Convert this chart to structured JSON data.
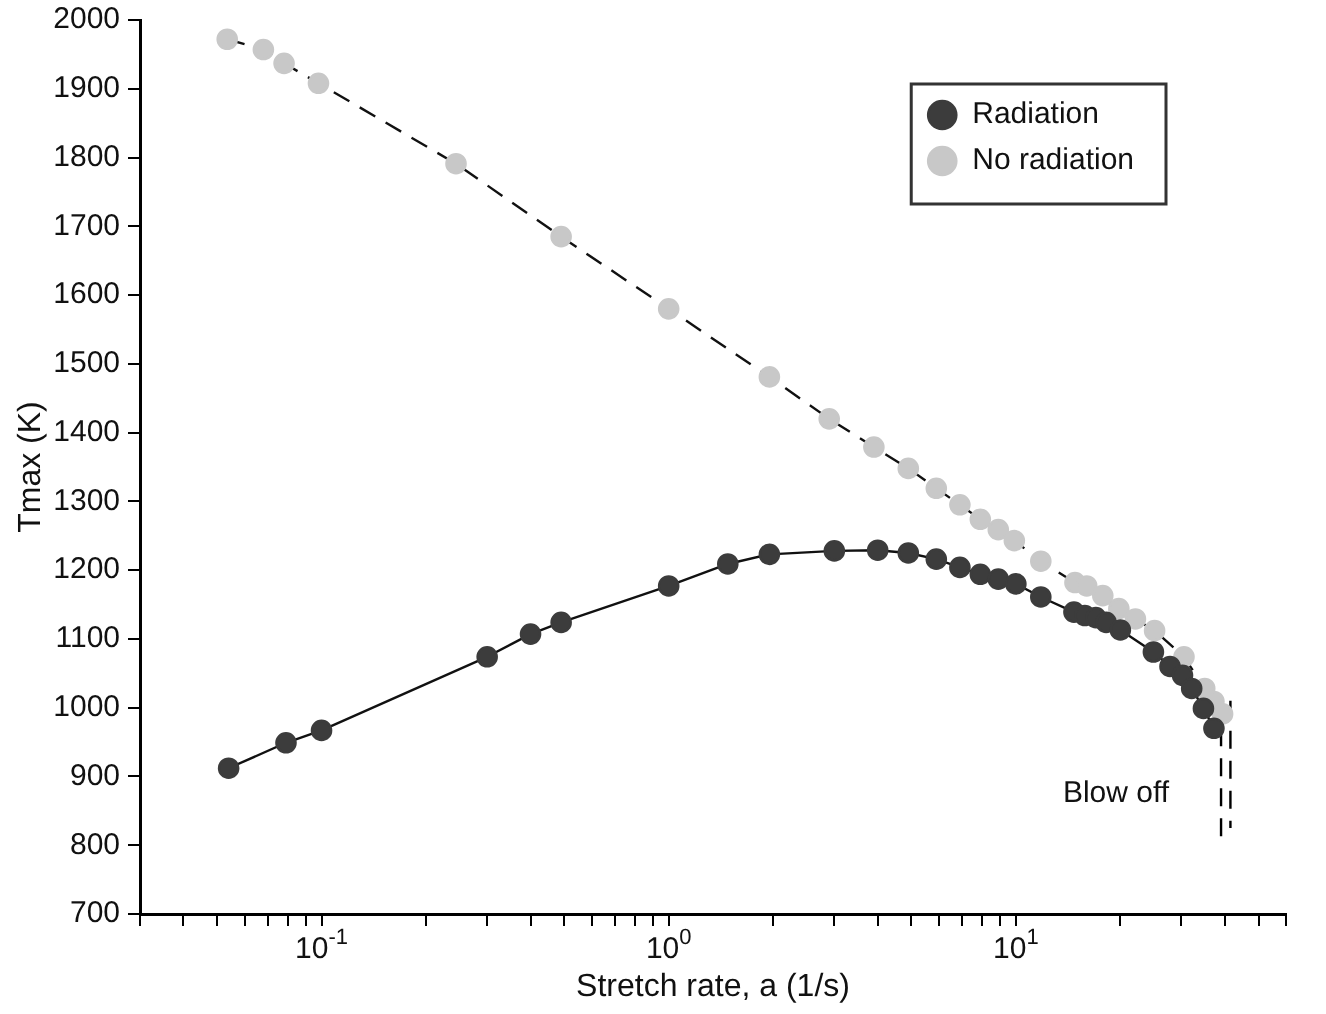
{
  "chart_data": {
    "type": "line",
    "xlabel": "Stretch rate, a (1/s)",
    "ylabel": "Tmax (K)",
    "log": "x",
    "legend": "top right",
    "grid": false,
    "xlim": [
      0.03,
      60
    ],
    "xticks": [
      {
        "value": 0.03,
        "label": null
      },
      {
        "value": 0.04,
        "label": null
      },
      {
        "value": 0.05,
        "label": null
      },
      {
        "value": 0.06,
        "label": null
      },
      {
        "value": 0.07,
        "label": null
      },
      {
        "value": 0.08,
        "label": null
      },
      {
        "value": 0.09,
        "label": null
      },
      {
        "value": 0.1,
        "label": "10$^{-1}$"
      },
      {
        "value": 0.2,
        "label": null
      },
      {
        "value": 0.3,
        "label": null
      },
      {
        "value": 0.4,
        "label": null
      },
      {
        "value": 0.5,
        "label": null
      },
      {
        "value": 0.6,
        "label": null
      },
      {
        "value": 0.7,
        "label": null
      },
      {
        "value": 0.8,
        "label": null
      },
      {
        "value": 0.9,
        "label": null
      },
      {
        "value": 1,
        "label": "10$^{0}$"
      },
      {
        "value": 2,
        "label": null
      },
      {
        "value": 3,
        "label": null
      },
      {
        "value": 4,
        "label": null
      },
      {
        "value": 5,
        "label": null
      },
      {
        "value": 6,
        "label": null
      },
      {
        "value": 7,
        "label": null
      },
      {
        "value": 8,
        "label": null
      },
      {
        "value": 9,
        "label": null
      },
      {
        "value": 10,
        "label": "10$^{1}$"
      },
      {
        "value": 20,
        "label": null
      },
      {
        "value": 30,
        "label": null
      },
      {
        "value": 40,
        "label": null
      },
      {
        "value": 50,
        "label": null
      },
      {
        "value": 60,
        "label": null
      }
    ],
    "ylim": [
      700,
      2000
    ],
    "yticks": [
      700,
      800,
      900,
      1000,
      1100,
      1200,
      1300,
      1400,
      1500,
      1600,
      1700,
      1800,
      1900,
      2000
    ],
    "series": [
      {
        "name": "Radiation",
        "color": "#3c3c3c",
        "marker": "circle",
        "line_style": "solid",
        "x": [
          0.054,
          0.079,
          0.1,
          0.3,
          0.4,
          0.49,
          1,
          1.48,
          1.95,
          3,
          4,
          4.9,
          5.9,
          6.9,
          7.9,
          8.9,
          10,
          11.8,
          14.7,
          15.8,
          17,
          18.2,
          20,
          24.9,
          27.8,
          30.2,
          32.1,
          34.7,
          37.2
        ],
        "values": [
          912,
          949,
          967,
          1074,
          1107,
          1124,
          1177,
          1209,
          1223,
          1228,
          1229,
          1225,
          1216,
          1204,
          1194,
          1187,
          1180,
          1161,
          1139,
          1134,
          1131,
          1124,
          1113,
          1081,
          1060,
          1047,
          1028,
          999,
          970
        ]
      },
      {
        "name": "No radiation",
        "color": "#c8c8c8",
        "marker": "circle",
        "line_style": "dashed",
        "x": [
          0.0535,
          0.068,
          0.078,
          0.098,
          0.244,
          0.49,
          1,
          1.95,
          2.9,
          3.9,
          4.9,
          5.9,
          6.9,
          7.9,
          8.9,
          9.9,
          11.8,
          14.8,
          16,
          17.8,
          19.8,
          22.1,
          25.1,
          30.5,
          35,
          37.2,
          39.4
        ],
        "values": [
          1972,
          1957,
          1937,
          1908,
          1791,
          1685,
          1580,
          1481,
          1420,
          1379,
          1348,
          1319,
          1295,
          1274,
          1259,
          1243,
          1213,
          1182,
          1177,
          1163,
          1144,
          1129,
          1112,
          1074,
          1028,
          1009,
          991
        ]
      },
      {
        "color": "#000000",
        "marker": "none",
        "line_style": "dashed",
        "x": [
          39,
          39
        ],
        "values": [
          970,
          812
        ]
      },
      {
        "color": "#000000",
        "marker": "none",
        "line_style": "dashed",
        "x": [
          41.5,
          41.5
        ],
        "values": [
          1010,
          825
        ]
      }
    ],
    "annotations": [
      "Blow off"
    ]
  }
}
